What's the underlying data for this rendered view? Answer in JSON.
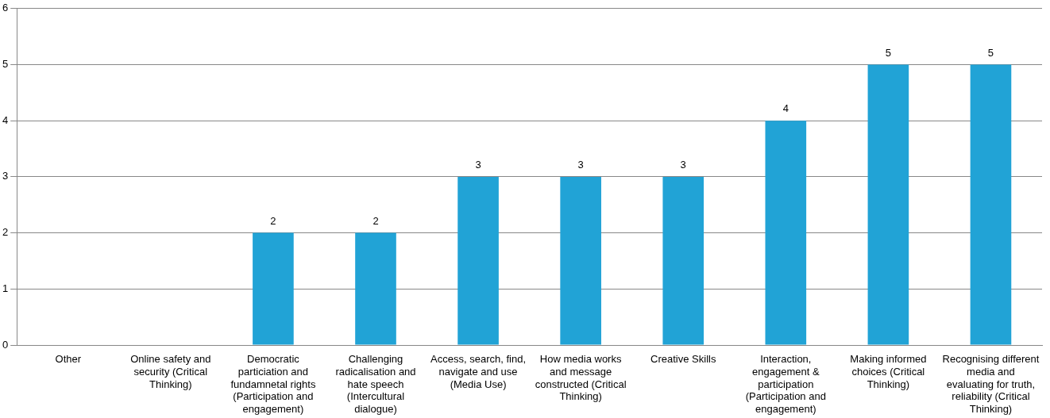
{
  "chart_data": {
    "type": "bar",
    "categories": [
      "Other",
      "Online safety and security (Critical Thinking)",
      "Democratic particiation and fundamnetal rights (Participation and engagement)",
      "Challenging radicalisation and hate speech (Intercultural dialogue)",
      "Access, search, find, navigate and use (Media Use)",
      "How media works and message constructed (Critical Thinking)",
      "Creative Skills",
      "Interaction, engagement & participation (Participation and engagement)",
      "Making informed choices (Critical Thinking)",
      "Recognising different media and evaluating for truth, reliability (Critical Thinking)"
    ],
    "values": [
      0,
      0,
      2,
      2,
      3,
      3,
      3,
      4,
      5,
      5
    ],
    "value_labels": [
      null,
      null,
      "2",
      "2",
      "3",
      "3",
      "3",
      "4",
      "5",
      "5"
    ],
    "color": "#21a3d6",
    "ylim": [
      0,
      6
    ],
    "yticks": [
      0,
      1,
      2,
      3,
      4,
      5,
      6
    ],
    "grid": "y",
    "legend": false
  }
}
